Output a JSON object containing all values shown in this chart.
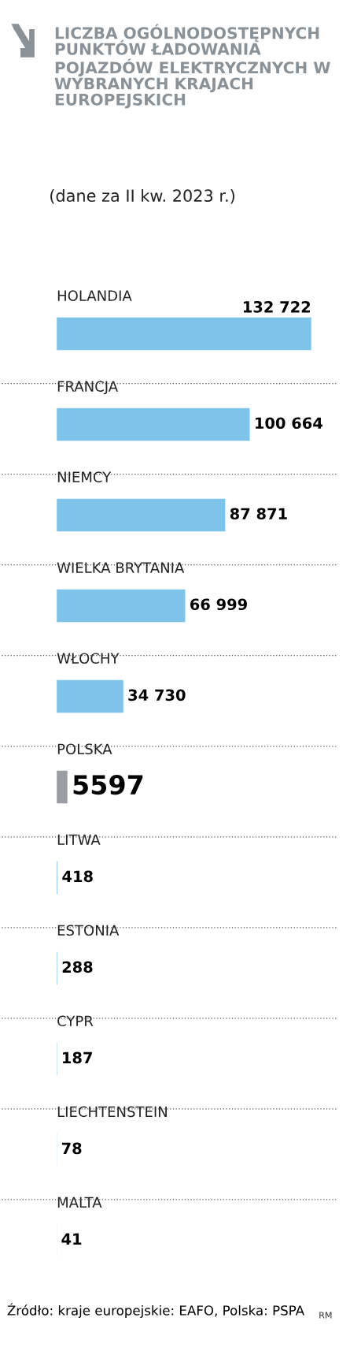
{
  "chart_data": {
    "type": "bar",
    "orientation": "horizontal",
    "title": "LICZBA OGÓLNODOSTĘPNYCH PUNKTÓW ŁADOWANIA POJAZDÓW ELEKTRYCZNYCH W WYBRANYCH KRAJACH EUROPEJSKICH",
    "subtitle": "(dane za II kw. 2023 r.)",
    "categories": [
      "HOLANDIA",
      "FRANCJA",
      "NIEMCY",
      "WIELKA BRYTANIA",
      "WŁOCHY",
      "POLSKA",
      "LITWA",
      "ESTONIA",
      "CYPR",
      "LIECHTENSTEIN",
      "MALTA"
    ],
    "values": [
      132722,
      100664,
      87871,
      66999,
      34730,
      5597,
      418,
      288,
      187,
      78,
      41
    ],
    "value_labels": [
      "132 722",
      "100 664",
      "87 871",
      "66 999",
      "34 730",
      "5597",
      "418",
      "288",
      "187",
      "78",
      "41"
    ],
    "colors": [
      "#7ec4ea",
      "#7ec4ea",
      "#7ec4ea",
      "#7ec4ea",
      "#7ec4ea",
      "#9a9da1",
      "#7ec4ea",
      "#7ec4ea",
      "#7ec4ea",
      "#7ec4ea",
      "#7ec4ea"
    ],
    "xlim": [
      0,
      146000
    ],
    "annotations": [
      "Źródło: kraje europejskie: EAFO, Polska: PSPA",
      "RM"
    ]
  }
}
